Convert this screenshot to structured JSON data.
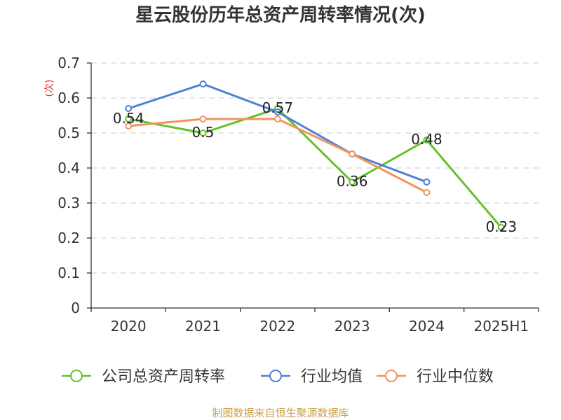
{
  "footer": "制图数据来自恒生聚源数据库",
  "colors": {
    "ylabel": "#e5302a",
    "footer": "#c8a04a"
  },
  "chart_data": {
    "type": "line",
    "title": "星云股份历年总资产周转率情况(次)",
    "xlabel": "",
    "ylabel": "(次)",
    "categories": [
      "2020",
      "2021",
      "2022",
      "2023",
      "2024",
      "2025H1"
    ],
    "yticks": [
      0,
      0.1,
      0.2,
      0.3,
      0.4,
      0.5,
      0.6,
      0.7
    ],
    "ylim": [
      0,
      0.7
    ],
    "grid": true,
    "legend": "bottom",
    "series": [
      {
        "name": "公司总资产周转率",
        "color": "#63c22b",
        "values": [
          0.54,
          0.5,
          0.57,
          0.36,
          0.48,
          0.23
        ],
        "show_labels": true
      },
      {
        "name": "行业均值",
        "color": "#4f80d9",
        "values": [
          0.57,
          0.64,
          0.56,
          0.44,
          0.36,
          null
        ],
        "show_labels": false
      },
      {
        "name": "行业中位数",
        "color": "#f4925f",
        "values": [
          0.52,
          0.54,
          0.54,
          0.44,
          0.33,
          null
        ],
        "show_labels": false
      }
    ]
  }
}
